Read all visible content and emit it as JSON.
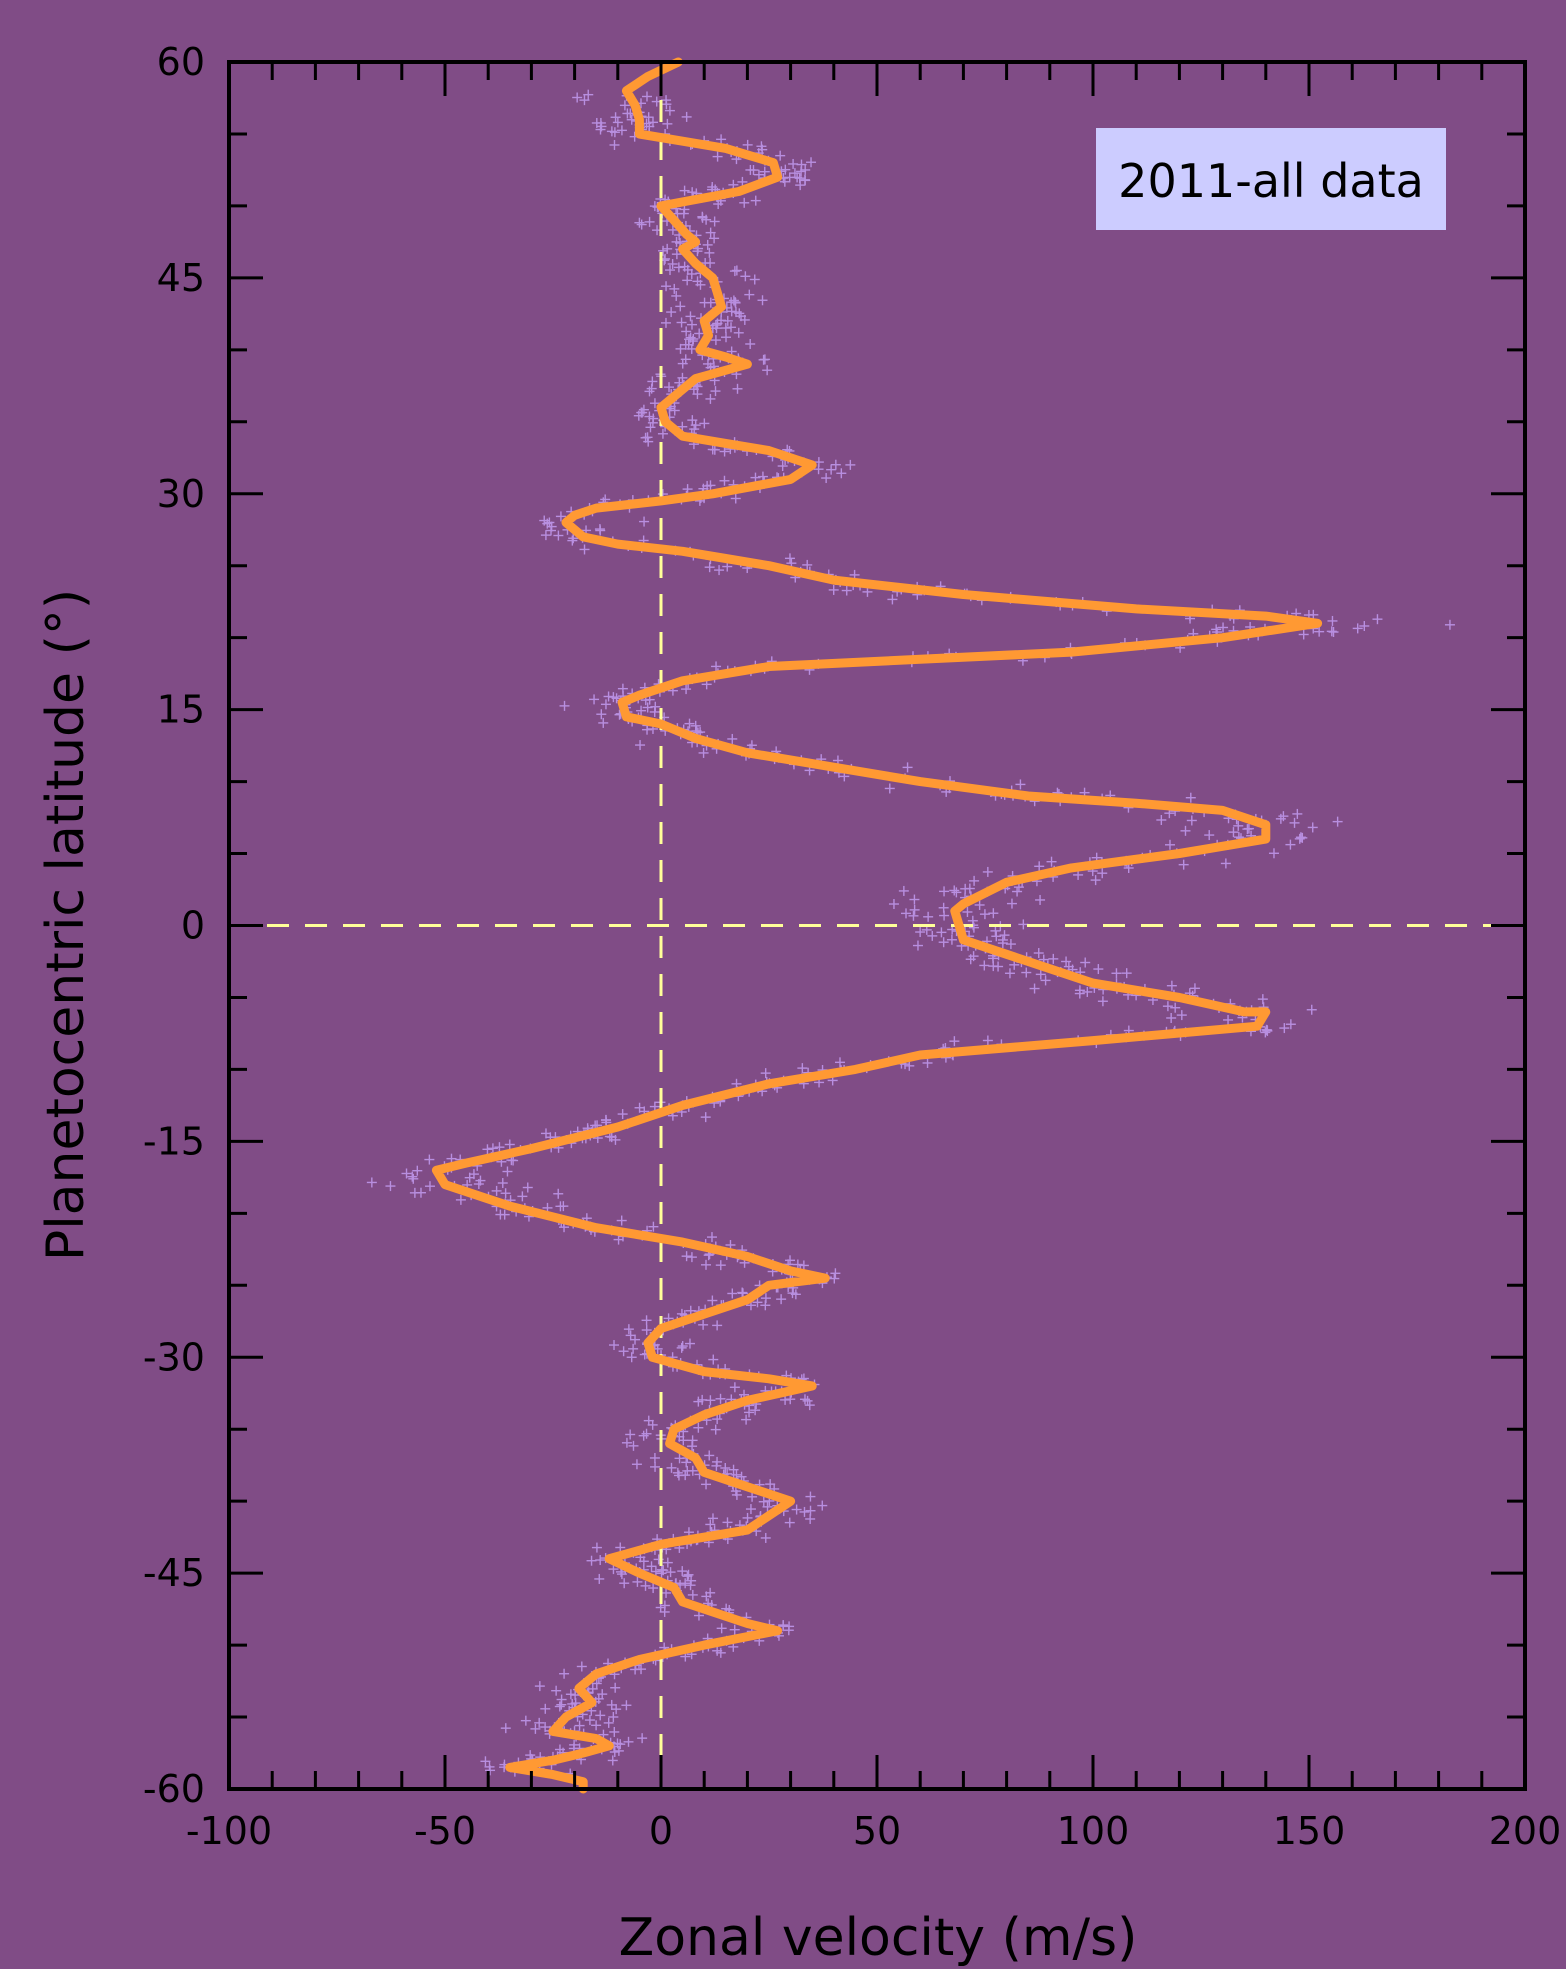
{
  "chart_data": {
    "type": "scatter",
    "xlabel": "Zonal velocity (m/s)",
    "ylabel": "Planetocentric latitude (°)",
    "xlim": [
      -100,
      200
    ],
    "ylim": [
      -60,
      60
    ],
    "xticks": [
      -100,
      -50,
      0,
      50,
      100,
      150,
      200
    ],
    "yticks": [
      -60,
      -45,
      -30,
      -15,
      0,
      15,
      30,
      45,
      60
    ],
    "x_tick_labels": [
      "-100",
      "-50",
      "0",
      "50",
      "100",
      "150",
      "200"
    ],
    "y_tick_labels": [
      "-60",
      "-45",
      "-30",
      "-15",
      "0",
      "15",
      "30",
      "45",
      "60"
    ],
    "legend_label": "2011-all data",
    "legend_position": "top-right",
    "reference_lines": [
      {
        "orientation": "vertical",
        "value": 0,
        "style": "dashed"
      },
      {
        "orientation": "horizontal",
        "value": 0,
        "style": "dashed"
      }
    ],
    "colors": {
      "background": "#804c86",
      "profile_line": "#ff9933",
      "scatter_points": "#b88fe0",
      "reference_lines": "#ffff99",
      "legend_box": "#ccccff",
      "axes": "#000000"
    },
    "scatter_spread_ms": 7,
    "series": [
      {
        "name": "2011-all data",
        "kind": "profile-line",
        "points": [
          [
            4,
            60
          ],
          [
            -3,
            59
          ],
          [
            -8,
            58
          ],
          [
            -6,
            57
          ],
          [
            -5,
            56
          ],
          [
            -5,
            55
          ],
          [
            5,
            54.5
          ],
          [
            15,
            54
          ],
          [
            26,
            53
          ],
          [
            27,
            52
          ],
          [
            18,
            51
          ],
          [
            0,
            50
          ],
          [
            3,
            49
          ],
          [
            6,
            48
          ],
          [
            8,
            47.5
          ],
          [
            5,
            47
          ],
          [
            8,
            46
          ],
          [
            12,
            45
          ],
          [
            13,
            44
          ],
          [
            14,
            43
          ],
          [
            10,
            42
          ],
          [
            11,
            41
          ],
          [
            9,
            40
          ],
          [
            15,
            39.5
          ],
          [
            20,
            39
          ],
          [
            14,
            38.5
          ],
          [
            8,
            38
          ],
          [
            0,
            36
          ],
          [
            1,
            35
          ],
          [
            5,
            34
          ],
          [
            15,
            33.5
          ],
          [
            25,
            33
          ],
          [
            35,
            32
          ],
          [
            30,
            31
          ],
          [
            12,
            30
          ],
          [
            0,
            29.5
          ],
          [
            -15,
            29
          ],
          [
            -20,
            28.5
          ],
          [
            -22,
            28
          ],
          [
            -18,
            27
          ],
          [
            -10,
            26.5
          ],
          [
            5,
            26
          ],
          [
            15,
            25.5
          ],
          [
            25,
            25
          ],
          [
            40,
            24
          ],
          [
            70,
            23
          ],
          [
            110,
            22
          ],
          [
            140,
            21.5
          ],
          [
            152,
            21
          ],
          [
            130,
            20
          ],
          [
            95,
            19
          ],
          [
            60,
            18.5
          ],
          [
            25,
            18
          ],
          [
            5,
            17
          ],
          [
            -5,
            16
          ],
          [
            -9,
            15.5
          ],
          [
            -8,
            14.5
          ],
          [
            0,
            14
          ],
          [
            8,
            13
          ],
          [
            20,
            12
          ],
          [
            40,
            11
          ],
          [
            60,
            10
          ],
          [
            85,
            9
          ],
          [
            110,
            8.5
          ],
          [
            130,
            8
          ],
          [
            140,
            7
          ],
          [
            140,
            6
          ],
          [
            120,
            5
          ],
          [
            95,
            4
          ],
          [
            80,
            3
          ],
          [
            70,
            1.5
          ],
          [
            68,
            1
          ],
          [
            70,
            -1
          ],
          [
            80,
            -2
          ],
          [
            100,
            -4
          ],
          [
            120,
            -5
          ],
          [
            135,
            -6
          ],
          [
            140,
            -6
          ],
          [
            138,
            -7
          ],
          [
            100,
            -8
          ],
          [
            60,
            -9
          ],
          [
            45,
            -10
          ],
          [
            25,
            -11
          ],
          [
            5,
            -12.5
          ],
          [
            -10,
            -14
          ],
          [
            -30,
            -15.5
          ],
          [
            -45,
            -16.5
          ],
          [
            -52,
            -17
          ],
          [
            -50,
            -18
          ],
          [
            -35,
            -19.5
          ],
          [
            -15,
            -21
          ],
          [
            5,
            -22
          ],
          [
            20,
            -23
          ],
          [
            30,
            -24
          ],
          [
            38,
            -24.5
          ],
          [
            25,
            -25
          ],
          [
            20,
            -26
          ],
          [
            10,
            -27
          ],
          [
            0,
            -28
          ],
          [
            -3,
            -29
          ],
          [
            -2,
            -30
          ],
          [
            10,
            -31
          ],
          [
            25,
            -31.5
          ],
          [
            35,
            -32
          ],
          [
            20,
            -33
          ],
          [
            10,
            -34
          ],
          [
            3,
            -35
          ],
          [
            2,
            -36
          ],
          [
            8,
            -37
          ],
          [
            10,
            -38
          ],
          [
            20,
            -39
          ],
          [
            30,
            -40
          ],
          [
            25,
            -41
          ],
          [
            20,
            -42
          ],
          [
            0,
            -43
          ],
          [
            -12,
            -44
          ],
          [
            -5,
            -45
          ],
          [
            3,
            -46
          ],
          [
            5,
            -47
          ],
          [
            20,
            -48.5
          ],
          [
            27,
            -49
          ],
          [
            10,
            -50
          ],
          [
            -5,
            -51
          ],
          [
            -15,
            -52
          ],
          [
            -19,
            -53
          ],
          [
            -16,
            -54
          ],
          [
            -22,
            -55
          ],
          [
            -25,
            -56
          ],
          [
            -15,
            -56.5
          ],
          [
            -12,
            -57
          ],
          [
            -18,
            -57.5
          ],
          [
            -25,
            -58
          ],
          [
            -35,
            -58.5
          ],
          [
            -25,
            -59
          ],
          [
            -18,
            -59.5
          ],
          [
            -18,
            -60
          ]
        ]
      }
    ]
  }
}
